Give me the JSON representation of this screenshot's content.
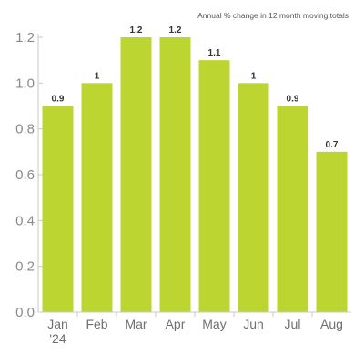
{
  "chart_data": {
    "type": "bar",
    "title": "",
    "subtitle": "Annual % change in 12 month moving totals",
    "categories": [
      "Jan",
      "Feb",
      "Mar",
      "Apr",
      "May",
      "Jun",
      "Jul",
      "Aug"
    ],
    "category_sublabels": [
      "'24",
      "",
      "",
      "",
      "",
      "",
      "",
      ""
    ],
    "values": [
      0.9,
      1,
      1.2,
      1.2,
      1.1,
      1,
      0.9,
      0.7
    ],
    "value_labels": [
      "0.9",
      "1",
      "1.2",
      "1.2",
      "1.1",
      "1",
      "0.9",
      "0.7"
    ],
    "yticks": [
      0.0,
      0.2,
      0.4,
      0.6,
      0.8,
      1.0,
      1.2
    ],
    "ytick_labels": [
      "0.0",
      "0.2",
      "0.4",
      "0.6",
      "0.8",
      "1.0",
      "1.2"
    ],
    "ylim": [
      0,
      1.2
    ],
    "xlabel": "",
    "ylabel": "",
    "grid": false,
    "colors": {
      "bar": "#bcd531",
      "axis": "#c9c9c9"
    }
  }
}
